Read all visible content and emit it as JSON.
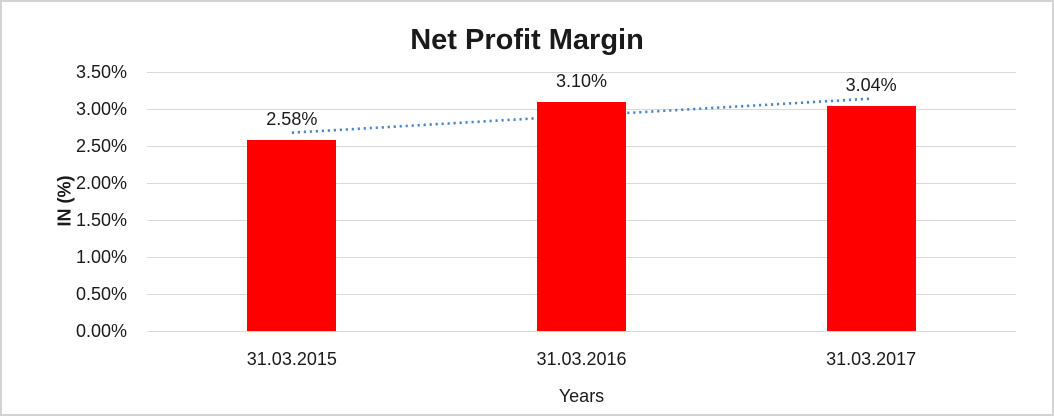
{
  "chart": {
    "background": "#ffffff",
    "border_color": "#d3d3d3",
    "text_color": "#1a1a1a"
  },
  "chart_data": {
    "type": "bar",
    "title": "Net Profit Margin",
    "xlabel": "Years",
    "ylabel": "IN (%)",
    "categories": [
      "31.03.2015",
      "31.03.2016",
      "31.03.2017"
    ],
    "values": [
      2.58,
      3.1,
      3.04
    ],
    "value_labels": [
      "2.58%",
      "3.10%",
      "3.04%"
    ],
    "ylim": [
      0,
      3.5
    ],
    "ytick_step": 0.5,
    "ytick_labels_top_to_bottom": [
      "3.50%",
      "3.00%",
      "2.50%",
      "2.00%",
      "1.50%",
      "1.00%",
      "0.50%",
      "0.00%"
    ],
    "grid": true,
    "legend": "none",
    "bar_color": "#ff0000",
    "gridline_color": "#d9d9d9",
    "trendline": {
      "style": "dotted",
      "color": "#4d86c8",
      "start_value": 2.68,
      "end_value": 3.14
    }
  }
}
